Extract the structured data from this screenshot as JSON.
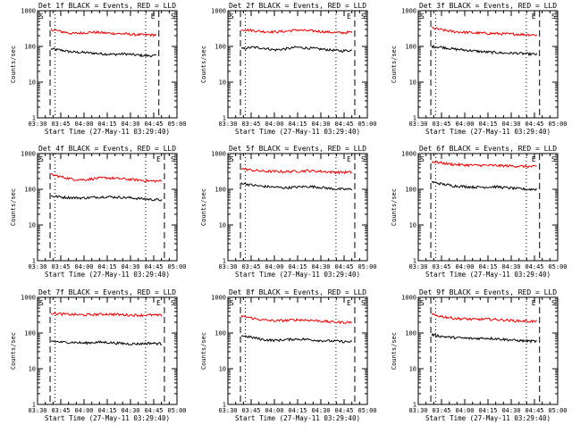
{
  "figure": {
    "y_axis_label": "Counts/sec",
    "x_axis_label": "Start Time (27-May-11 03:29:40)",
    "marker_S": "S",
    "marker_E": "E",
    "colors": {
      "events": "#000000",
      "lld": "#e00000",
      "axes": "#000000",
      "background": "#ffffff"
    }
  },
  "chart_data": [
    {
      "type": "line",
      "title": "Det 1f BLACK = Events, RED = LLD",
      "xlabel": "Start Time (27-May-11 03:29:40)",
      "ylabel": "Counts/sec",
      "yscale": "log",
      "ylim": [
        1,
        1000
      ],
      "x_ticks": [
        "03:30",
        "03:45",
        "04:00",
        "04:15",
        "04:30",
        "04:45",
        "05:00"
      ],
      "y_ticks": [
        "1",
        "10",
        "100",
        "1000"
      ],
      "series": [
        {
          "name": "BLACK = Events",
          "values": [
            85,
            78,
            70,
            68,
            65,
            62,
            60,
            62,
            58,
            55,
            55
          ]
        },
        {
          "name": "RED = LLD",
          "values": [
            300,
            260,
            230,
            240,
            250,
            240,
            230,
            225,
            215,
            210,
            210
          ]
        }
      ]
    },
    {
      "type": "line",
      "title": "Det 2f BLACK = Events, RED = LLD",
      "xlabel": "Start Time (27-May-11 03:29:40)",
      "ylabel": "Counts/sec",
      "yscale": "log",
      "ylim": [
        1,
        1000
      ],
      "x_ticks": [
        "03:30",
        "03:45",
        "04:00",
        "04:15",
        "04:30",
        "04:45",
        "05:00"
      ],
      "y_ticks": [
        "1",
        "10",
        "100",
        "1000"
      ],
      "series": [
        {
          "name": "BLACK = Events",
          "values": [
            85,
            95,
            90,
            80,
            85,
            95,
            90,
            85,
            80,
            75,
            78
          ]
        },
        {
          "name": "RED = LLD",
          "values": [
            300,
            280,
            260,
            255,
            265,
            290,
            275,
            265,
            250,
            240,
            250
          ]
        }
      ]
    },
    {
      "type": "line",
      "title": "Det 3f BLACK = Events, RED = LLD",
      "xlabel": "Start Time (27-May-11 03:29:40)",
      "ylabel": "Counts/sec",
      "yscale": "log",
      "ylim": [
        1,
        1000
      ],
      "x_ticks": [
        "03:30",
        "03:45",
        "04:00",
        "04:15",
        "04:30",
        "04:45",
        "05:00"
      ],
      "y_ticks": [
        "1",
        "10",
        "100",
        "1000"
      ],
      "series": [
        {
          "name": "BLACK = Events",
          "values": [
            100,
            95,
            85,
            80,
            75,
            70,
            68,
            65,
            65,
            62,
            60
          ]
        },
        {
          "name": "RED = LLD",
          "values": [
            330,
            290,
            260,
            250,
            240,
            235,
            230,
            225,
            220,
            215,
            210
          ]
        }
      ]
    },
    {
      "type": "line",
      "title": "Det 4f BLACK = Events, RED = LLD",
      "xlabel": "Start Time (27-May-11 03:29:40)",
      "ylabel": "Counts/sec",
      "yscale": "log",
      "ylim": [
        1,
        1000
      ],
      "x_ticks": [
        "03:30",
        "03:45",
        "04:00",
        "04:15",
        "04:30",
        "04:45",
        "05:00"
      ],
      "y_ticks": [
        "1",
        "10",
        "100",
        "1000"
      ],
      "series": [
        {
          "name": "BLACK = Events",
          "values": [
            65,
            60,
            58,
            57,
            60,
            62,
            60,
            58,
            55,
            52,
            50
          ]
        },
        {
          "name": "RED = LLD",
          "values": [
            260,
            220,
            190,
            185,
            200,
            210,
            200,
            190,
            180,
            170,
            170
          ]
        }
      ]
    },
    {
      "type": "line",
      "title": "Det 5f BLACK = Events, RED = LLD",
      "xlabel": "Start Time (27-May-11 03:29:40)",
      "ylabel": "Counts/sec",
      "yscale": "log",
      "ylim": [
        1,
        1000
      ],
      "x_ticks": [
        "03:30",
        "03:45",
        "04:00",
        "04:15",
        "04:30",
        "04:45",
        "05:00"
      ],
      "y_ticks": [
        "1",
        "10",
        "100",
        "1000"
      ],
      "series": [
        {
          "name": "BLACK = Events",
          "values": [
            150,
            130,
            120,
            115,
            110,
            115,
            120,
            115,
            105,
            100,
            100
          ]
        },
        {
          "name": "RED = LLD",
          "values": [
            380,
            340,
            320,
            315,
            310,
            320,
            330,
            320,
            305,
            300,
            300
          ]
        }
      ]
    },
    {
      "type": "line",
      "title": "Det 6f BLACK = Events, RED = LLD",
      "xlabel": "Start Time (27-May-11 03:29:40)",
      "ylabel": "Counts/sec",
      "yscale": "log",
      "ylim": [
        1,
        1000
      ],
      "x_ticks": [
        "03:30",
        "03:45",
        "04:00",
        "04:15",
        "04:30",
        "04:45",
        "05:00"
      ],
      "y_ticks": [
        "1",
        "10",
        "100",
        "1000"
      ],
      "series": [
        {
          "name": "BLACK = Events",
          "values": [
            160,
            140,
            125,
            120,
            115,
            115,
            118,
            112,
            105,
            100,
            100
          ]
        },
        {
          "name": "RED = LLD",
          "values": [
            600,
            540,
            500,
            480,
            470,
            470,
            460,
            455,
            445,
            435,
            430
          ]
        }
      ]
    },
    {
      "type": "line",
      "title": "Det 7f BLACK = Events, RED = LLD",
      "xlabel": "Start Time (27-May-11 03:29:40)",
      "ylabel": "Counts/sec",
      "yscale": "log",
      "ylim": [
        1,
        1000
      ],
      "x_ticks": [
        "03:30",
        "03:45",
        "04:00",
        "04:15",
        "04:30",
        "04:45",
        "05:00"
      ],
      "y_ticks": [
        "1",
        "10",
        "100",
        "1000"
      ],
      "series": [
        {
          "name": "BLACK = Events",
          "values": [
            60,
            55,
            55,
            52,
            55,
            55,
            52,
            50,
            50,
            52,
            50
          ]
        },
        {
          "name": "RED = LLD",
          "values": [
            360,
            340,
            330,
            320,
            330,
            340,
            330,
            320,
            315,
            320,
            310
          ]
        }
      ]
    },
    {
      "type": "line",
      "title": "Det 8f BLACK = Events, RED = LLD",
      "xlabel": "Start Time (27-May-11 03:29:40)",
      "ylabel": "Counts/sec",
      "yscale": "log",
      "ylim": [
        1,
        1000
      ],
      "x_ticks": [
        "03:30",
        "03:45",
        "04:00",
        "04:15",
        "04:30",
        "04:45",
        "05:00"
      ],
      "y_ticks": [
        "1",
        "10",
        "100",
        "1000"
      ],
      "series": [
        {
          "name": "BLACK = Events",
          "values": [
            85,
            75,
            65,
            62,
            65,
            68,
            66,
            62,
            60,
            58,
            56
          ]
        },
        {
          "name": "RED = LLD",
          "values": [
            300,
            260,
            230,
            220,
            225,
            235,
            230,
            220,
            205,
            200,
            200
          ]
        }
      ]
    },
    {
      "type": "line",
      "title": "Det 9f BLACK = Events, RED = LLD",
      "xlabel": "Start Time (27-May-11 03:29:40)",
      "ylabel": "Counts/sec",
      "yscale": "log",
      "ylim": [
        1,
        1000
      ],
      "x_ticks": [
        "03:30",
        "03:45",
        "04:00",
        "04:15",
        "04:30",
        "04:45",
        "05:00"
      ],
      "y_ticks": [
        "1",
        "10",
        "100",
        "1000"
      ],
      "series": [
        {
          "name": "BLACK = Events",
          "values": [
            90,
            80,
            75,
            72,
            70,
            72,
            70,
            66,
            62,
            60,
            58
          ]
        },
        {
          "name": "RED = LLD",
          "values": [
            330,
            290,
            260,
            250,
            240,
            245,
            240,
            230,
            220,
            215,
            210
          ]
        }
      ]
    }
  ]
}
